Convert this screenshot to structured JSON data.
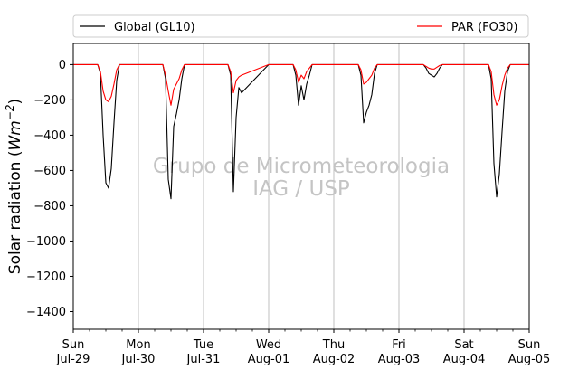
{
  "chart_data": {
    "type": "line",
    "title": "",
    "xlabel": "",
    "ylabel": "Solar radiation (Wm−2)",
    "ylabel_prefix": "Solar radiation (",
    "ylabel_unit": "Wm",
    "ylabel_exp": "−2",
    "ylabel_suffix": ")",
    "ylim": [
      -1500,
      120
    ],
    "yticks": [
      0,
      -200,
      -400,
      -600,
      -800,
      -1000,
      -1200,
      -1400
    ],
    "ytick_labels": [
      "0",
      "−200",
      "−400",
      "−600",
      "−800",
      "−1000",
      "−1200",
      "−1400"
    ],
    "xlim": [
      "2018-07-29",
      "2018-08-05"
    ],
    "xticks": [
      {
        "day": "Sun",
        "date": "Jul-29"
      },
      {
        "day": "Mon",
        "date": "Jul-30"
      },
      {
        "day": "Tue",
        "date": "Jul-31"
      },
      {
        "day": "Wed",
        "date": "Aug-01"
      },
      {
        "day": "Thu",
        "date": "Aug-02"
      },
      {
        "day": "Fri",
        "date": "Aug-03"
      },
      {
        "day": "Sat",
        "date": "Aug-04"
      },
      {
        "day": "Sun",
        "date": "Aug-05"
      }
    ],
    "grid": "vertical-major",
    "legend_placement": "top-above",
    "watermark": [
      "Grupo de Micrometeorologia",
      "IAG / USP"
    ],
    "series": [
      {
        "name": "Global (GL10)",
        "color": "#000000",
        "points": [
          [
            "2018-07-29 00:00",
            0
          ],
          [
            "2018-07-29 09:00",
            0
          ],
          [
            "2018-07-29 10:00",
            -50
          ],
          [
            "2018-07-29 11:00",
            -400
          ],
          [
            "2018-07-29 12:00",
            -670
          ],
          [
            "2018-07-29 13:00",
            -700
          ],
          [
            "2018-07-29 14:00",
            -590
          ],
          [
            "2018-07-29 15:00",
            -330
          ],
          [
            "2018-07-29 16:00",
            -90
          ],
          [
            "2018-07-29 17:00",
            0
          ],
          [
            "2018-07-30 09:00",
            0
          ],
          [
            "2018-07-30 10:00",
            -80
          ],
          [
            "2018-07-30 11:00",
            -650
          ],
          [
            "2018-07-30 12:00",
            -760
          ],
          [
            "2018-07-30 13:00",
            -350
          ],
          [
            "2018-07-30 14:00",
            -280
          ],
          [
            "2018-07-30 15:00",
            -200
          ],
          [
            "2018-07-30 16:00",
            -80
          ],
          [
            "2018-07-30 17:00",
            0
          ],
          [
            "2018-07-31 09:00",
            0
          ],
          [
            "2018-07-31 10:00",
            -60
          ],
          [
            "2018-07-31 11:00",
            -720
          ],
          [
            "2018-07-31 12:00",
            -300
          ],
          [
            "2018-07-31 13:00",
            -130
          ],
          [
            "2018-07-31 14:00",
            -160
          ],
          [
            "2018-08-01 00:00",
            0
          ],
          [
            "2018-08-01 09:00",
            0
          ],
          [
            "2018-08-01 10:00",
            -60
          ],
          [
            "2018-08-01 11:00",
            -230
          ],
          [
            "2018-08-01 12:00",
            -120
          ],
          [
            "2018-08-01 13:00",
            -200
          ],
          [
            "2018-08-01 14:00",
            -110
          ],
          [
            "2018-08-01 15:00",
            -60
          ],
          [
            "2018-08-01 16:00",
            0
          ],
          [
            "2018-08-02 09:00",
            0
          ],
          [
            "2018-08-02 10:00",
            -60
          ],
          [
            "2018-08-02 11:00",
            -330
          ],
          [
            "2018-08-02 12:00",
            -270
          ],
          [
            "2018-08-02 13:00",
            -230
          ],
          [
            "2018-08-02 14:00",
            -170
          ],
          [
            "2018-08-02 15:00",
            -50
          ],
          [
            "2018-08-02 16:00",
            0
          ],
          [
            "2018-08-03 09:00",
            0
          ],
          [
            "2018-08-03 10:00",
            -20
          ],
          [
            "2018-08-03 11:00",
            -50
          ],
          [
            "2018-08-03 12:00",
            -60
          ],
          [
            "2018-08-03 13:00",
            -70
          ],
          [
            "2018-08-03 14:00",
            -50
          ],
          [
            "2018-08-03 15:00",
            -20
          ],
          [
            "2018-08-03 16:00",
            0
          ],
          [
            "2018-08-04 09:00",
            0
          ],
          [
            "2018-08-04 10:00",
            -80
          ],
          [
            "2018-08-04 11:00",
            -560
          ],
          [
            "2018-08-04 12:00",
            -750
          ],
          [
            "2018-08-04 13:00",
            -620
          ],
          [
            "2018-08-04 14:00",
            -380
          ],
          [
            "2018-08-04 15:00",
            -150
          ],
          [
            "2018-08-04 16:00",
            -40
          ],
          [
            "2018-08-04 17:00",
            0
          ],
          [
            "2018-08-05 00:00",
            0
          ]
        ]
      },
      {
        "name": "PAR (FO30)",
        "color": "#ff0000",
        "points": [
          [
            "2018-07-29 00:00",
            0
          ],
          [
            "2018-07-29 09:00",
            0
          ],
          [
            "2018-07-29 10:00",
            -40
          ],
          [
            "2018-07-29 11:00",
            -150
          ],
          [
            "2018-07-29 12:00",
            -200
          ],
          [
            "2018-07-29 13:00",
            -210
          ],
          [
            "2018-07-29 14:00",
            -180
          ],
          [
            "2018-07-29 15:00",
            -110
          ],
          [
            "2018-07-29 16:00",
            -30
          ],
          [
            "2018-07-29 17:00",
            0
          ],
          [
            "2018-07-30 09:00",
            0
          ],
          [
            "2018-07-30 10:00",
            -60
          ],
          [
            "2018-07-30 11:00",
            -150
          ],
          [
            "2018-07-30 12:00",
            -230
          ],
          [
            "2018-07-30 13:00",
            -140
          ],
          [
            "2018-07-30 14:00",
            -110
          ],
          [
            "2018-07-30 15:00",
            -80
          ],
          [
            "2018-07-30 16:00",
            -30
          ],
          [
            "2018-07-30 17:00",
            0
          ],
          [
            "2018-07-31 09:00",
            0
          ],
          [
            "2018-07-31 10:00",
            -40
          ],
          [
            "2018-07-31 11:00",
            -160
          ],
          [
            "2018-07-31 12:00",
            -90
          ],
          [
            "2018-07-31 13:00",
            -70
          ],
          [
            "2018-07-31 14:00",
            -60
          ],
          [
            "2018-08-01 00:00",
            0
          ],
          [
            "2018-08-01 09:00",
            0
          ],
          [
            "2018-08-01 10:00",
            -30
          ],
          [
            "2018-08-01 11:00",
            -100
          ],
          [
            "2018-08-01 12:00",
            -60
          ],
          [
            "2018-08-01 13:00",
            -80
          ],
          [
            "2018-08-01 14:00",
            -40
          ],
          [
            "2018-08-01 15:00",
            -20
          ],
          [
            "2018-08-01 16:00",
            0
          ],
          [
            "2018-08-02 09:00",
            0
          ],
          [
            "2018-08-02 10:00",
            -30
          ],
          [
            "2018-08-02 11:00",
            -110
          ],
          [
            "2018-08-02 12:00",
            -100
          ],
          [
            "2018-08-02 13:00",
            -80
          ],
          [
            "2018-08-02 14:00",
            -60
          ],
          [
            "2018-08-02 15:00",
            -20
          ],
          [
            "2018-08-02 16:00",
            0
          ],
          [
            "2018-08-03 09:00",
            0
          ],
          [
            "2018-08-03 10:00",
            -10
          ],
          [
            "2018-08-03 11:00",
            -20
          ],
          [
            "2018-08-03 12:00",
            -25
          ],
          [
            "2018-08-03 13:00",
            -25
          ],
          [
            "2018-08-03 14:00",
            -15
          ],
          [
            "2018-08-03 15:00",
            -5
          ],
          [
            "2018-08-03 16:00",
            0
          ],
          [
            "2018-08-04 09:00",
            0
          ],
          [
            "2018-08-04 10:00",
            -40
          ],
          [
            "2018-08-04 11:00",
            -170
          ],
          [
            "2018-08-04 12:00",
            -230
          ],
          [
            "2018-08-04 13:00",
            -200
          ],
          [
            "2018-08-04 14:00",
            -120
          ],
          [
            "2018-08-04 15:00",
            -60
          ],
          [
            "2018-08-04 16:00",
            -20
          ],
          [
            "2018-08-04 17:00",
            0
          ],
          [
            "2018-08-05 00:00",
            0
          ]
        ]
      }
    ]
  }
}
